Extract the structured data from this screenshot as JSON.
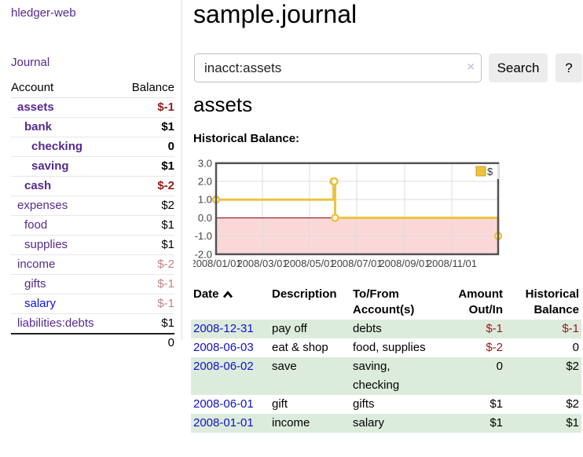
{
  "colors": {
    "link_purple": "#552a8e",
    "link_blue": "#1111dd",
    "negative": "#961a1a",
    "negative_soft": "#c48282",
    "row_green": "#dcecdc",
    "chart_line": "#edc240",
    "chart_negative_fill": "#fbd8d8",
    "chart_zero_line": "#8b0000"
  },
  "sidebar": {
    "app_title": "hledger-web",
    "journal_link": "Journal",
    "accounts_header": {
      "account": "Account",
      "balance": "Balance"
    },
    "accounts": [
      {
        "label": "assets",
        "level": 1,
        "bold": true,
        "balance": "$-1",
        "balance_class": "neg"
      },
      {
        "label": "bank",
        "level": 2,
        "bold": true,
        "balance": "$1",
        "balance_class": ""
      },
      {
        "label": "checking",
        "level": 3,
        "bold": true,
        "balance": "0",
        "balance_class": ""
      },
      {
        "label": "saving",
        "level": 3,
        "bold": true,
        "balance": "$1",
        "balance_class": ""
      },
      {
        "label": "cash",
        "level": 2,
        "bold": true,
        "balance": "$-2",
        "balance_class": "neg"
      },
      {
        "label": "expenses",
        "level": 1,
        "bold": false,
        "balance": "$2",
        "balance_class": ""
      },
      {
        "label": "food",
        "level": 2,
        "bold": false,
        "balance": "$1",
        "balance_class": ""
      },
      {
        "label": "supplies",
        "level": 2,
        "bold": false,
        "balance": "$1",
        "balance_class": ""
      },
      {
        "label": "income",
        "level": 1,
        "bold": false,
        "balance": "$-2",
        "balance_class": "negsoft"
      },
      {
        "label": "gifts",
        "level": 2,
        "bold": false,
        "balance": "$-1",
        "balance_class": "negsoft"
      },
      {
        "label": "salary",
        "level": 2,
        "bold": false,
        "balance": "$-1",
        "balance_class": "negsoft",
        "link_color": "blue"
      },
      {
        "label": "liabilities:debts",
        "level": 1,
        "bold": false,
        "balance": "$1",
        "balance_class": ""
      }
    ],
    "total": "0"
  },
  "main": {
    "title": "sample.journal",
    "search": {
      "value": "inacct:assets",
      "clear_icon": "×",
      "search_button": "Search",
      "help_button": "?"
    },
    "account_heading": "assets"
  },
  "chart_data": {
    "type": "line",
    "title": "Historical Balance:",
    "step": true,
    "series": [
      {
        "name": "$",
        "points": [
          [
            "2008-01-01",
            1
          ],
          [
            "2008-06-01",
            2
          ],
          [
            "2008-06-02",
            2
          ],
          [
            "2008-06-03",
            0
          ],
          [
            "2008-12-31",
            -1
          ]
        ]
      }
    ],
    "xlim": [
      "2008-01-01",
      "2008-12-31"
    ],
    "ylim": [
      -2,
      3
    ],
    "x_ticks": [
      {
        "label": "2008/01/01",
        "date": "2008-01-01"
      },
      {
        "label": "2008/03/01",
        "date": "2008-03-01"
      },
      {
        "label": "2008/05/01",
        "date": "2008-05-01"
      },
      {
        "label": "2008/07/01",
        "date": "2008-07-01"
      },
      {
        "label": "2008/09/01",
        "date": "2008-09-01"
      },
      {
        "label": "2008/11/01",
        "date": "2008-11-01"
      }
    ],
    "y_ticks": [
      {
        "label": "3.0",
        "value": 3
      },
      {
        "label": "2.0",
        "value": 2
      },
      {
        "label": "1.0",
        "value": 1
      },
      {
        "label": "0.0",
        "value": 0
      },
      {
        "label": "-1.0",
        "value": -1
      },
      {
        "label": "-2.0",
        "value": -2
      }
    ],
    "legend": {
      "label": "$",
      "position": "top-right"
    },
    "grid": true
  },
  "transactions": {
    "columns": [
      {
        "l1": "Date",
        "l2": ""
      },
      {
        "l1": "Description",
        "l2": ""
      },
      {
        "l1": "To/From",
        "l2": "Account(s)"
      },
      {
        "l1": "Amount",
        "l2": "Out/In"
      },
      {
        "l1": "Historical",
        "l2": "Balance"
      }
    ],
    "rows": [
      {
        "date": "2008-12-31",
        "description": "pay off",
        "accounts": "debts",
        "amount": "$-1",
        "amount_class": "neg",
        "balance": "$-1",
        "balance_class": "neg",
        "green": true
      },
      {
        "date": "2008-06-03",
        "description": "eat & shop",
        "accounts": "food, supplies",
        "amount": "$-2",
        "amount_class": "neg",
        "balance": "0",
        "balance_class": "",
        "green": false
      },
      {
        "date": "2008-06-02",
        "description": "save",
        "accounts": "saving,\nchecking",
        "amount": "0",
        "amount_class": "",
        "balance": "$2",
        "balance_class": "",
        "green": true
      },
      {
        "date": "2008-06-01",
        "description": "gift",
        "accounts": "gifts",
        "amount": "$1",
        "amount_class": "",
        "balance": "$2",
        "balance_class": "",
        "green": false
      },
      {
        "date": "2008-01-01",
        "description": "income",
        "accounts": "salary",
        "amount": "$1",
        "amount_class": "",
        "balance": "$1",
        "balance_class": "",
        "green": true
      }
    ]
  }
}
